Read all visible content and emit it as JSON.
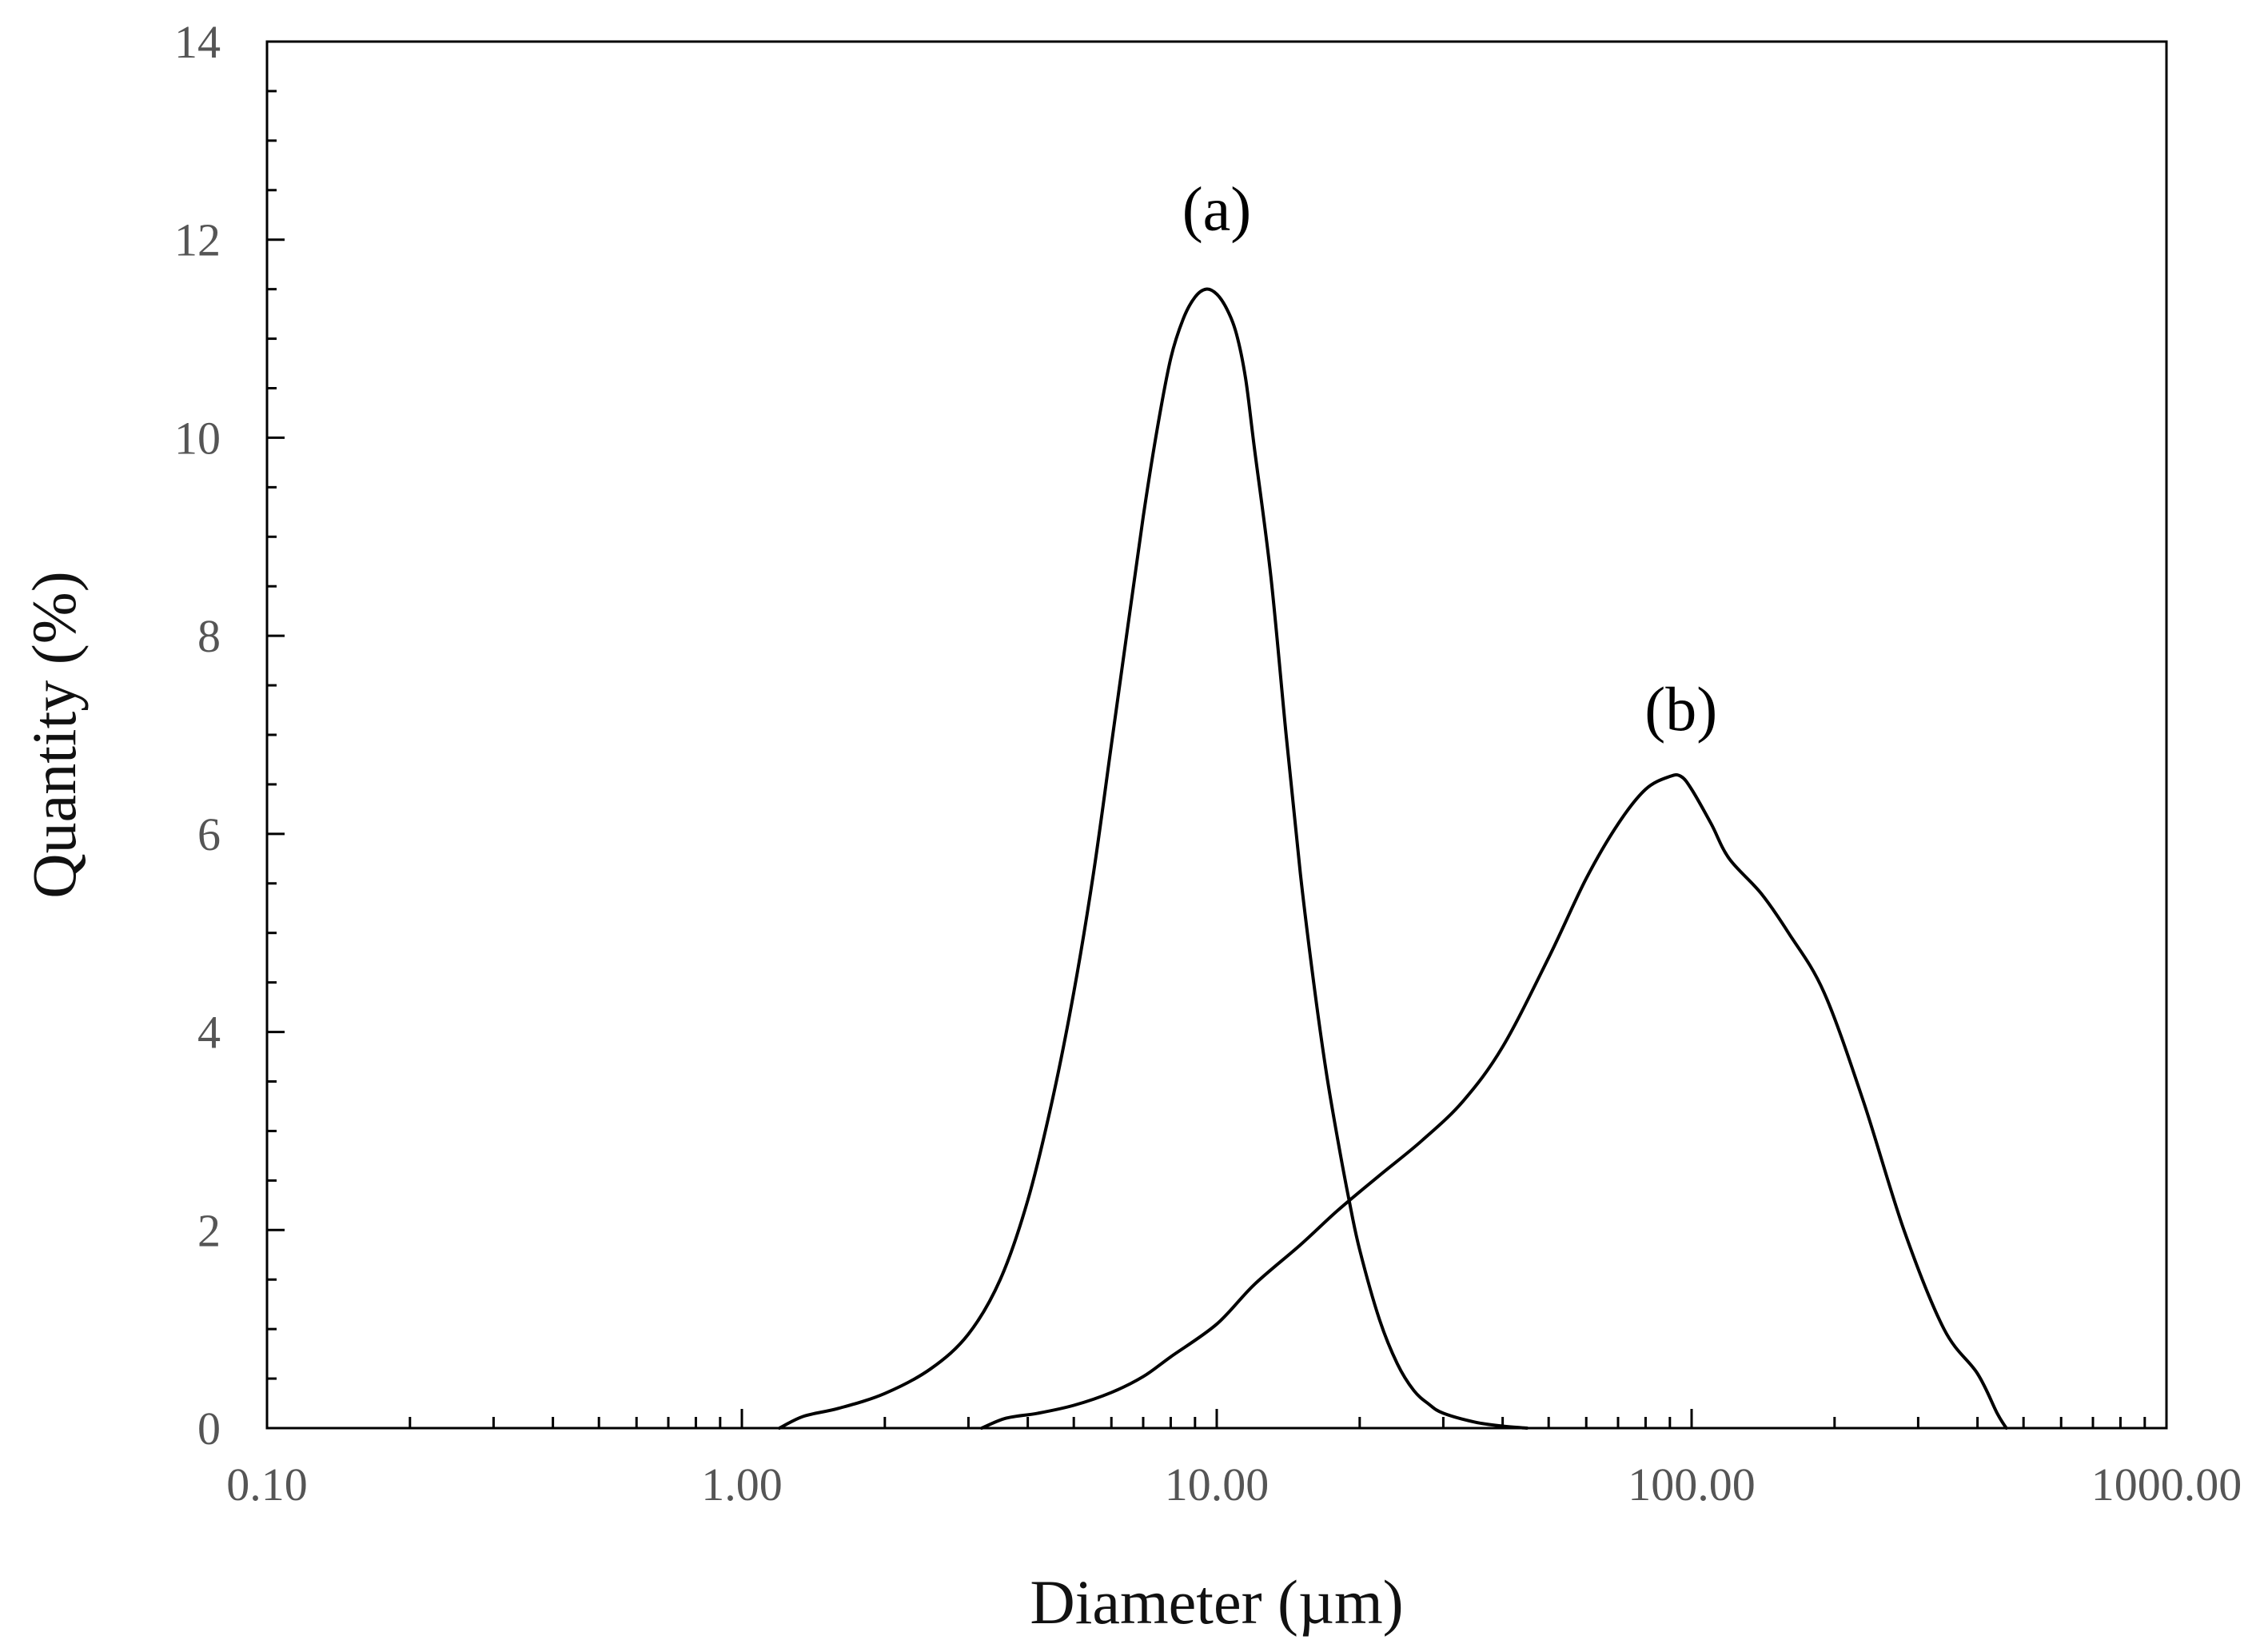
{
  "chart_data": {
    "type": "line",
    "title": "",
    "xlabel": "Diameter (µm)",
    "ylabel": "Quantity (%)",
    "x_scale": "log",
    "xlim": [
      0.1,
      1000
    ],
    "ylim": [
      0,
      14
    ],
    "x_ticks": [
      0.1,
      1,
      10,
      100,
      1000
    ],
    "x_tick_labels": [
      "0.10",
      "1.00",
      "10.00",
      "100.00",
      "1000.00"
    ],
    "y_ticks": [
      0,
      2,
      4,
      6,
      8,
      10,
      12,
      14
    ],
    "y_tick_labels": [
      "0",
      "2",
      "4",
      "6",
      "8",
      "10",
      "12",
      "14"
    ],
    "grid": false,
    "legend": "none",
    "line_color": "#000000",
    "series": [
      {
        "label": "(a)",
        "x": [
          1.2,
          1.35,
          1.6,
          2.0,
          2.5,
          3.0,
          3.5,
          4.0,
          4.5,
          5.0,
          5.5,
          6.0,
          6.5,
          7.0,
          7.5,
          8.0,
          8.5,
          9.0,
          9.5,
          10.0,
          10.5,
          11.0,
          11.5,
          12.0,
          13.0,
          14.0,
          15.0,
          16.0,
          17.0,
          18.0,
          19.0,
          20.0,
          22.0,
          24.0,
          26.0,
          28.0,
          30.0,
          35.0,
          40.0,
          45.0
        ],
        "y": [
          0.0,
          0.12,
          0.2,
          0.35,
          0.6,
          0.95,
          1.5,
          2.3,
          3.3,
          4.4,
          5.6,
          6.9,
          8.1,
          9.2,
          10.1,
          10.8,
          11.2,
          11.42,
          11.5,
          11.45,
          11.3,
          11.05,
          10.6,
          9.9,
          8.6,
          7.0,
          5.6,
          4.5,
          3.6,
          2.9,
          2.3,
          1.8,
          1.1,
          0.65,
          0.38,
          0.24,
          0.15,
          0.06,
          0.02,
          0.0
        ]
      },
      {
        "label": "(b)",
        "x": [
          3.2,
          3.6,
          4.2,
          5.0,
          6.0,
          7.0,
          8.0,
          10.0,
          12.0,
          15.0,
          18.0,
          22.0,
          27.0,
          33.0,
          40.0,
          50.0,
          60.0,
          70.0,
          80.0,
          90.0,
          95.0,
          100.0,
          110.0,
          120.0,
          140.0,
          160.0,
          190.0,
          230.0,
          280.0,
          340.0,
          400.0,
          440.0,
          460.0
        ],
        "y": [
          0.0,
          0.1,
          0.15,
          0.23,
          0.36,
          0.52,
          0.72,
          1.05,
          1.45,
          1.85,
          2.2,
          2.55,
          2.9,
          3.3,
          3.85,
          4.75,
          5.55,
          6.1,
          6.45,
          6.58,
          6.58,
          6.45,
          6.1,
          5.75,
          5.4,
          5.0,
          4.4,
          3.3,
          2.0,
          1.0,
          0.55,
          0.15,
          0.0
        ]
      }
    ],
    "annotations": [
      {
        "text": "(a)",
        "x": 10.0,
        "y": 12.1
      },
      {
        "text": "(b)",
        "x": 95.0,
        "y": 7.05
      }
    ]
  }
}
